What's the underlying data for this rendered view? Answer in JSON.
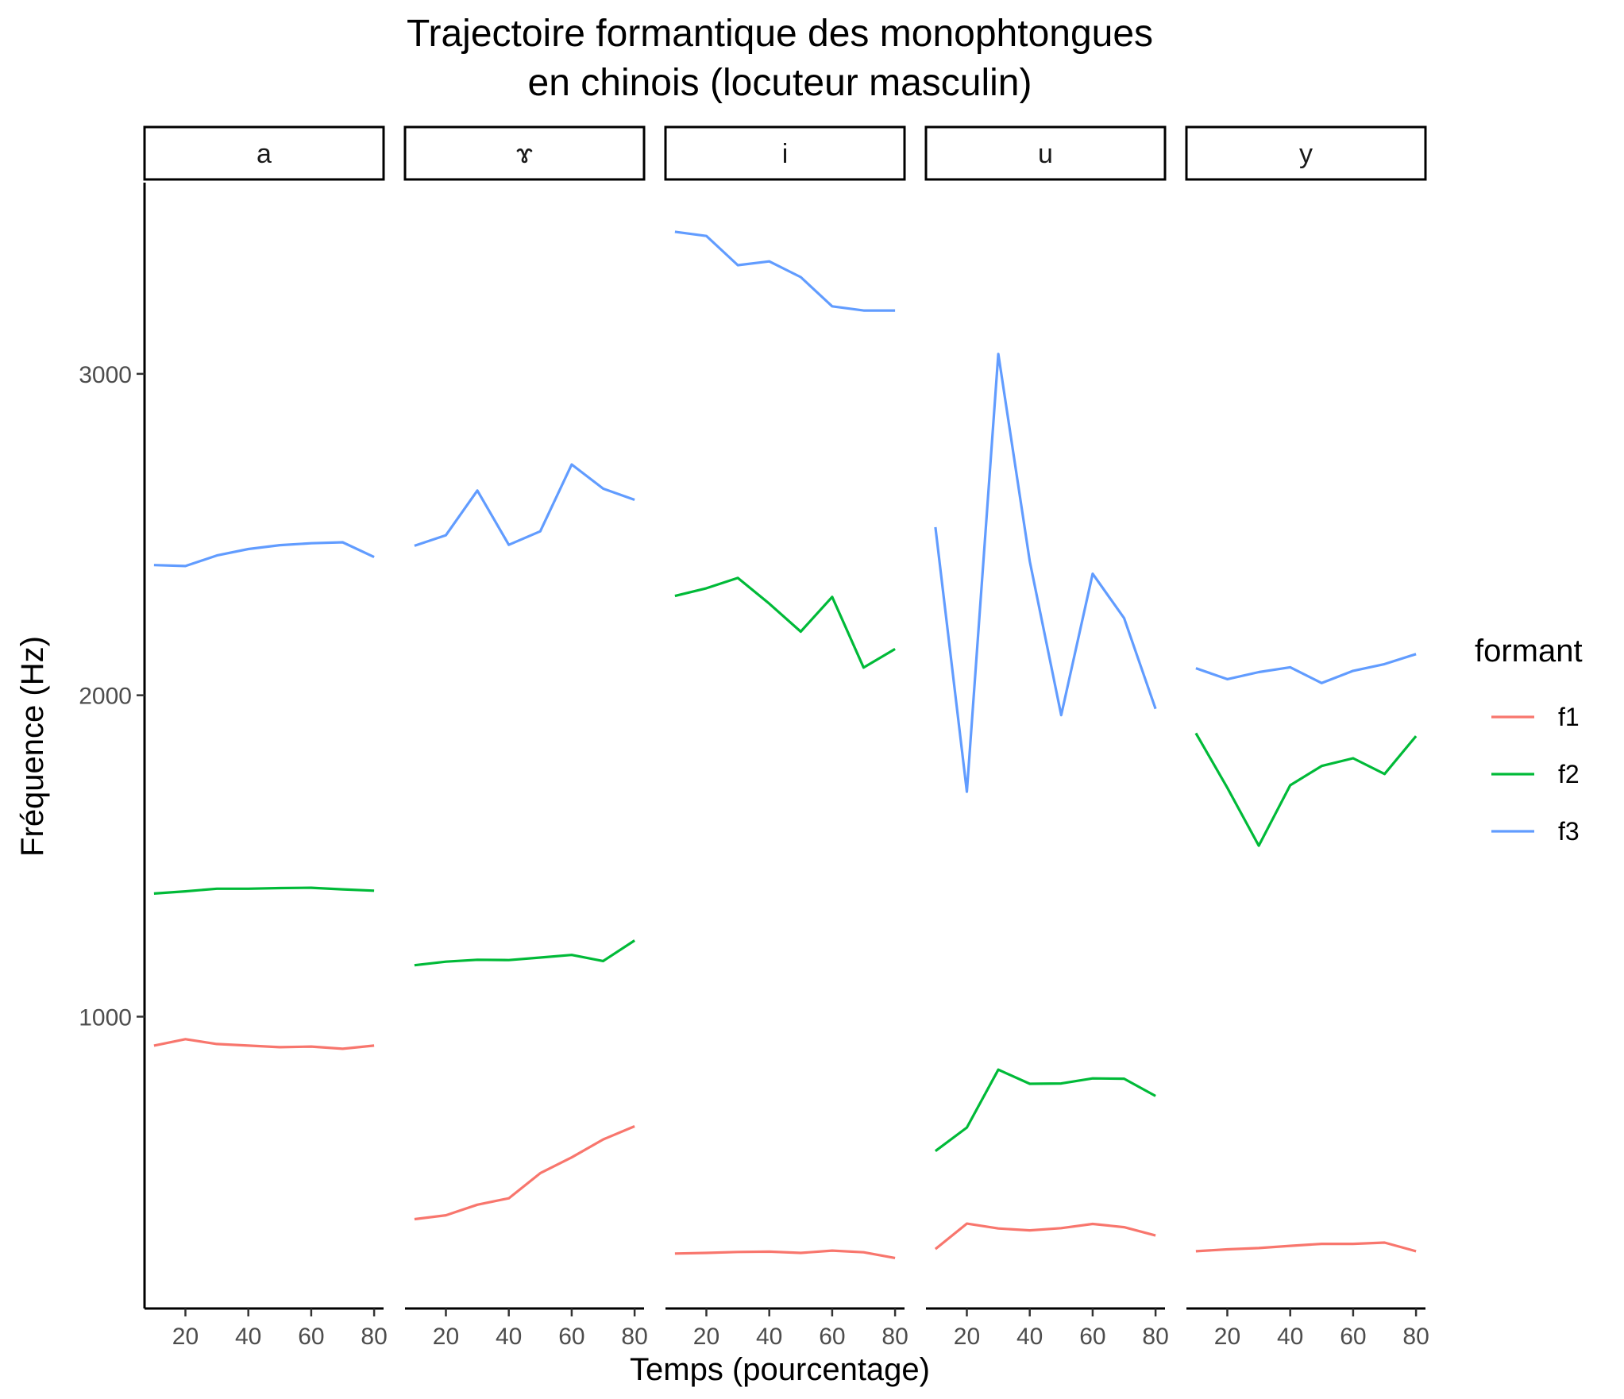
{
  "chart_data": {
    "type": "line",
    "title_lines": [
      "Trajectoire formantique des monophtongues",
      "en chinois (locuteur masculin)"
    ],
    "xlabel": "Temps (pourcentage)",
    "ylabel": "Fréquence (Hz)",
    "x": [
      10,
      20,
      30,
      40,
      50,
      60,
      70,
      80
    ],
    "xlim": [
      7,
      83
    ],
    "ylim": [
      92,
      3595
    ],
    "x_ticks": [
      20,
      40,
      60,
      80
    ],
    "y_ticks": [
      1000,
      2000,
      3000
    ],
    "grid": false,
    "legend": {
      "title": "formant",
      "position": "right",
      "entries": [
        "f1",
        "f2",
        "f3"
      ]
    },
    "colors": {
      "f1": "#F8766D",
      "f2": "#00BA38",
      "f3": "#619CFF"
    },
    "panels": [
      {
        "label": "a",
        "series": [
          {
            "name": "f1",
            "values": [
              910,
              930,
              915,
              910,
              905,
              907,
              900,
              910
            ]
          },
          {
            "name": "f2",
            "values": [
              1383,
              1390,
              1398,
              1398,
              1400,
              1401,
              1396,
              1392
            ]
          },
          {
            "name": "f3",
            "values": [
              2405,
              2402,
              2435,
              2455,
              2467,
              2473,
              2476,
              2430
            ]
          }
        ]
      },
      {
        "label": "ɤ",
        "series": [
          {
            "name": "f1",
            "values": [
              370,
              382,
              415,
              435,
              513,
              562,
              618,
              659
            ]
          },
          {
            "name": "f2",
            "values": [
              1160,
              1171,
              1177,
              1176,
              1184,
              1192,
              1173,
              1237
            ]
          },
          {
            "name": "f3",
            "values": [
              2465,
              2498,
              2637,
              2468,
              2510,
              2718,
              2643,
              2608
            ]
          }
        ]
      },
      {
        "label": "i",
        "series": [
          {
            "name": "f1",
            "values": [
              263,
              265,
              268,
              269,
              265,
              272,
              267,
              249
            ]
          },
          {
            "name": "f2",
            "values": [
              2309,
              2333,
              2365,
              2285,
              2198,
              2306,
              2086,
              2144
            ]
          },
          {
            "name": "f3",
            "values": [
              3442,
              3429,
              3338,
              3350,
              3301,
              3210,
              3197,
              3197
            ]
          }
        ]
      },
      {
        "label": "u",
        "series": [
          {
            "name": "f1",
            "values": [
              277,
              356,
              341,
              335,
              342,
              355,
              345,
              319
            ]
          },
          {
            "name": "f2",
            "values": [
              582,
              655,
              835,
              791,
              792,
              808,
              807,
              753
            ]
          },
          {
            "name": "f3",
            "values": [
              2523,
              1700,
              3062,
              2417,
              1938,
              2378,
              2240,
              1958
            ]
          }
        ]
      },
      {
        "label": "y",
        "series": [
          {
            "name": "f1",
            "values": [
              270,
              276,
              280,
              287,
              293,
              293,
              297,
              270
            ]
          },
          {
            "name": "f2",
            "values": [
              1882,
              1712,
              1532,
              1720,
              1780,
              1804,
              1755,
              1873
            ]
          },
          {
            "name": "f3",
            "values": [
              2084,
              2050,
              2072,
              2087,
              2038,
              2076,
              2097,
              2128
            ]
          }
        ]
      }
    ]
  }
}
